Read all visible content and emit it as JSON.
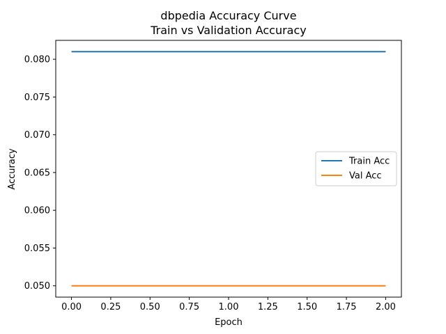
{
  "chart_data": {
    "type": "line",
    "title": "dbpedia Accuracy Curve",
    "subtitle": "Train vs Validation Accuracy",
    "xlabel": "Epoch",
    "ylabel": "Accuracy",
    "xlim": [
      -0.1,
      2.1
    ],
    "ylim": [
      0.0485,
      0.0825
    ],
    "xticks": [
      0.0,
      0.25,
      0.5,
      0.75,
      1.0,
      1.25,
      1.5,
      1.75,
      2.0
    ],
    "xtick_labels": [
      "0.00",
      "0.25",
      "0.50",
      "0.75",
      "1.00",
      "1.25",
      "1.50",
      "1.75",
      "2.00"
    ],
    "yticks": [
      0.05,
      0.055,
      0.06,
      0.065,
      0.07,
      0.075,
      0.08
    ],
    "ytick_labels": [
      "0.050",
      "0.055",
      "0.060",
      "0.065",
      "0.070",
      "0.075",
      "0.080"
    ],
    "grid": false,
    "legend_position": "center-right",
    "series": [
      {
        "name": "Train Acc",
        "color": "#1f77b4",
        "x": [
          0,
          1,
          2
        ],
        "y": [
          0.081,
          0.081,
          0.081
        ]
      },
      {
        "name": "Val Acc",
        "color": "#ff7f0e",
        "x": [
          0,
          1,
          2
        ],
        "y": [
          0.05,
          0.05,
          0.05
        ]
      }
    ]
  }
}
